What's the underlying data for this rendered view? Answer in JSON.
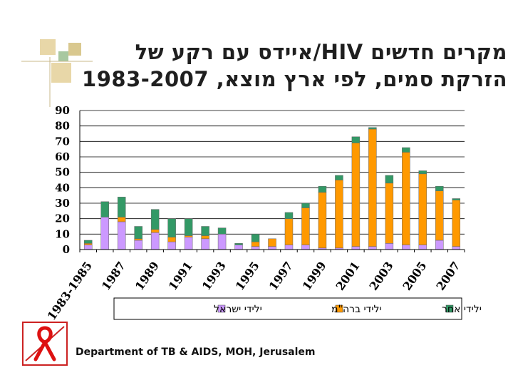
{
  "title": {
    "line1": "מקרים חדשים HIV/איידס עם רקע של",
    "line2": "הזרקת סמים, לפי ארץ מוצא, 1983-2007"
  },
  "footer": "Department of TB & AIDS, MOH, Jerusalem",
  "colors": {
    "israel": "#cc99ff",
    "fsu": "#ff9900",
    "other": "#339966",
    "decor_tan": "#e8d7a8",
    "decor_green": "#a8c8a0"
  },
  "chart_data": {
    "type": "bar",
    "stacked": true,
    "title": "מקרים חדשים HIV/איידס עם רקע של הזרקת סמים, לפי ארץ מוצא, 1983-2007",
    "xlabel": "",
    "ylabel": "",
    "ylim": [
      0,
      90
    ],
    "yticks": [
      0,
      10,
      20,
      30,
      40,
      50,
      60,
      70,
      80,
      90
    ],
    "grid": true,
    "legend_position": "bottom",
    "categories": [
      "1983-1985",
      "1986",
      "1987",
      "1988",
      "1989",
      "1990",
      "1991",
      "1992",
      "1993",
      "1994",
      "1995",
      "1996",
      "1997",
      "1998",
      "1999",
      "2000",
      "2001",
      "2002",
      "2003",
      "2004",
      "2005",
      "2006",
      "2007"
    ],
    "tick_labels": [
      "1983-1985",
      "1987",
      "1989",
      "1991",
      "1993",
      "1995",
      "1997",
      "1999",
      "2001",
      "2003",
      "2005",
      "2007"
    ],
    "series": [
      {
        "name": "ילידי ישראל",
        "color_key": "israel",
        "values": [
          3,
          21,
          18,
          6,
          11,
          5,
          8,
          7,
          10,
          3,
          2,
          2,
          3,
          3,
          1,
          1,
          2,
          2,
          4,
          3,
          3,
          6,
          2
        ]
      },
      {
        "name": "ילידי ברה\"מ",
        "color_key": "fsu",
        "values": [
          1,
          0,
          3,
          1,
          2,
          3,
          1,
          2,
          0,
          0,
          3,
          5,
          17,
          24,
          36,
          44,
          67,
          76,
          39,
          60,
          46,
          32,
          30
        ]
      },
      {
        "name": "ילידי אחר",
        "color_key": "other",
        "values": [
          2,
          10,
          13,
          8,
          13,
          12,
          11,
          6,
          4,
          1,
          5,
          0,
          4,
          3,
          4,
          3,
          4,
          1,
          5,
          3,
          2,
          3,
          1
        ]
      }
    ]
  },
  "legend": [
    {
      "label": "ילידי ישראל",
      "color_key": "israel"
    },
    {
      "label": "ילידי ברה\"מ",
      "color_key": "fsu"
    },
    {
      "label": "ילידי אחר",
      "color_key": "other"
    }
  ]
}
